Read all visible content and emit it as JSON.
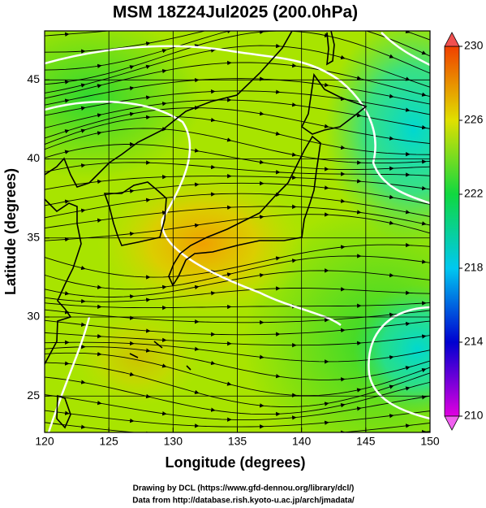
{
  "title": "MSM 18Z24Jul2025 (200.0hPa)",
  "map": {
    "xlabel": "Longitude (degrees)",
    "ylabel": "Latitude  (degrees)",
    "xlim": [
      120,
      150
    ],
    "ylim": [
      22.7,
      48.1
    ],
    "xticks": [
      120,
      125,
      130,
      135,
      140,
      145,
      150
    ],
    "yticks": [
      25,
      30,
      35,
      40,
      45
    ],
    "grid": true
  },
  "colorbar": {
    "lim": [
      210,
      230
    ],
    "ticks": [
      210,
      214,
      218,
      222,
      226,
      230
    ]
  },
  "footer": [
    "Drawing by DCL (https://www.gfd-dennou.org/library/dcl/)",
    "Data from http://database.rish.kyoto-u.ac.jp/arch/jmadata/"
  ]
}
